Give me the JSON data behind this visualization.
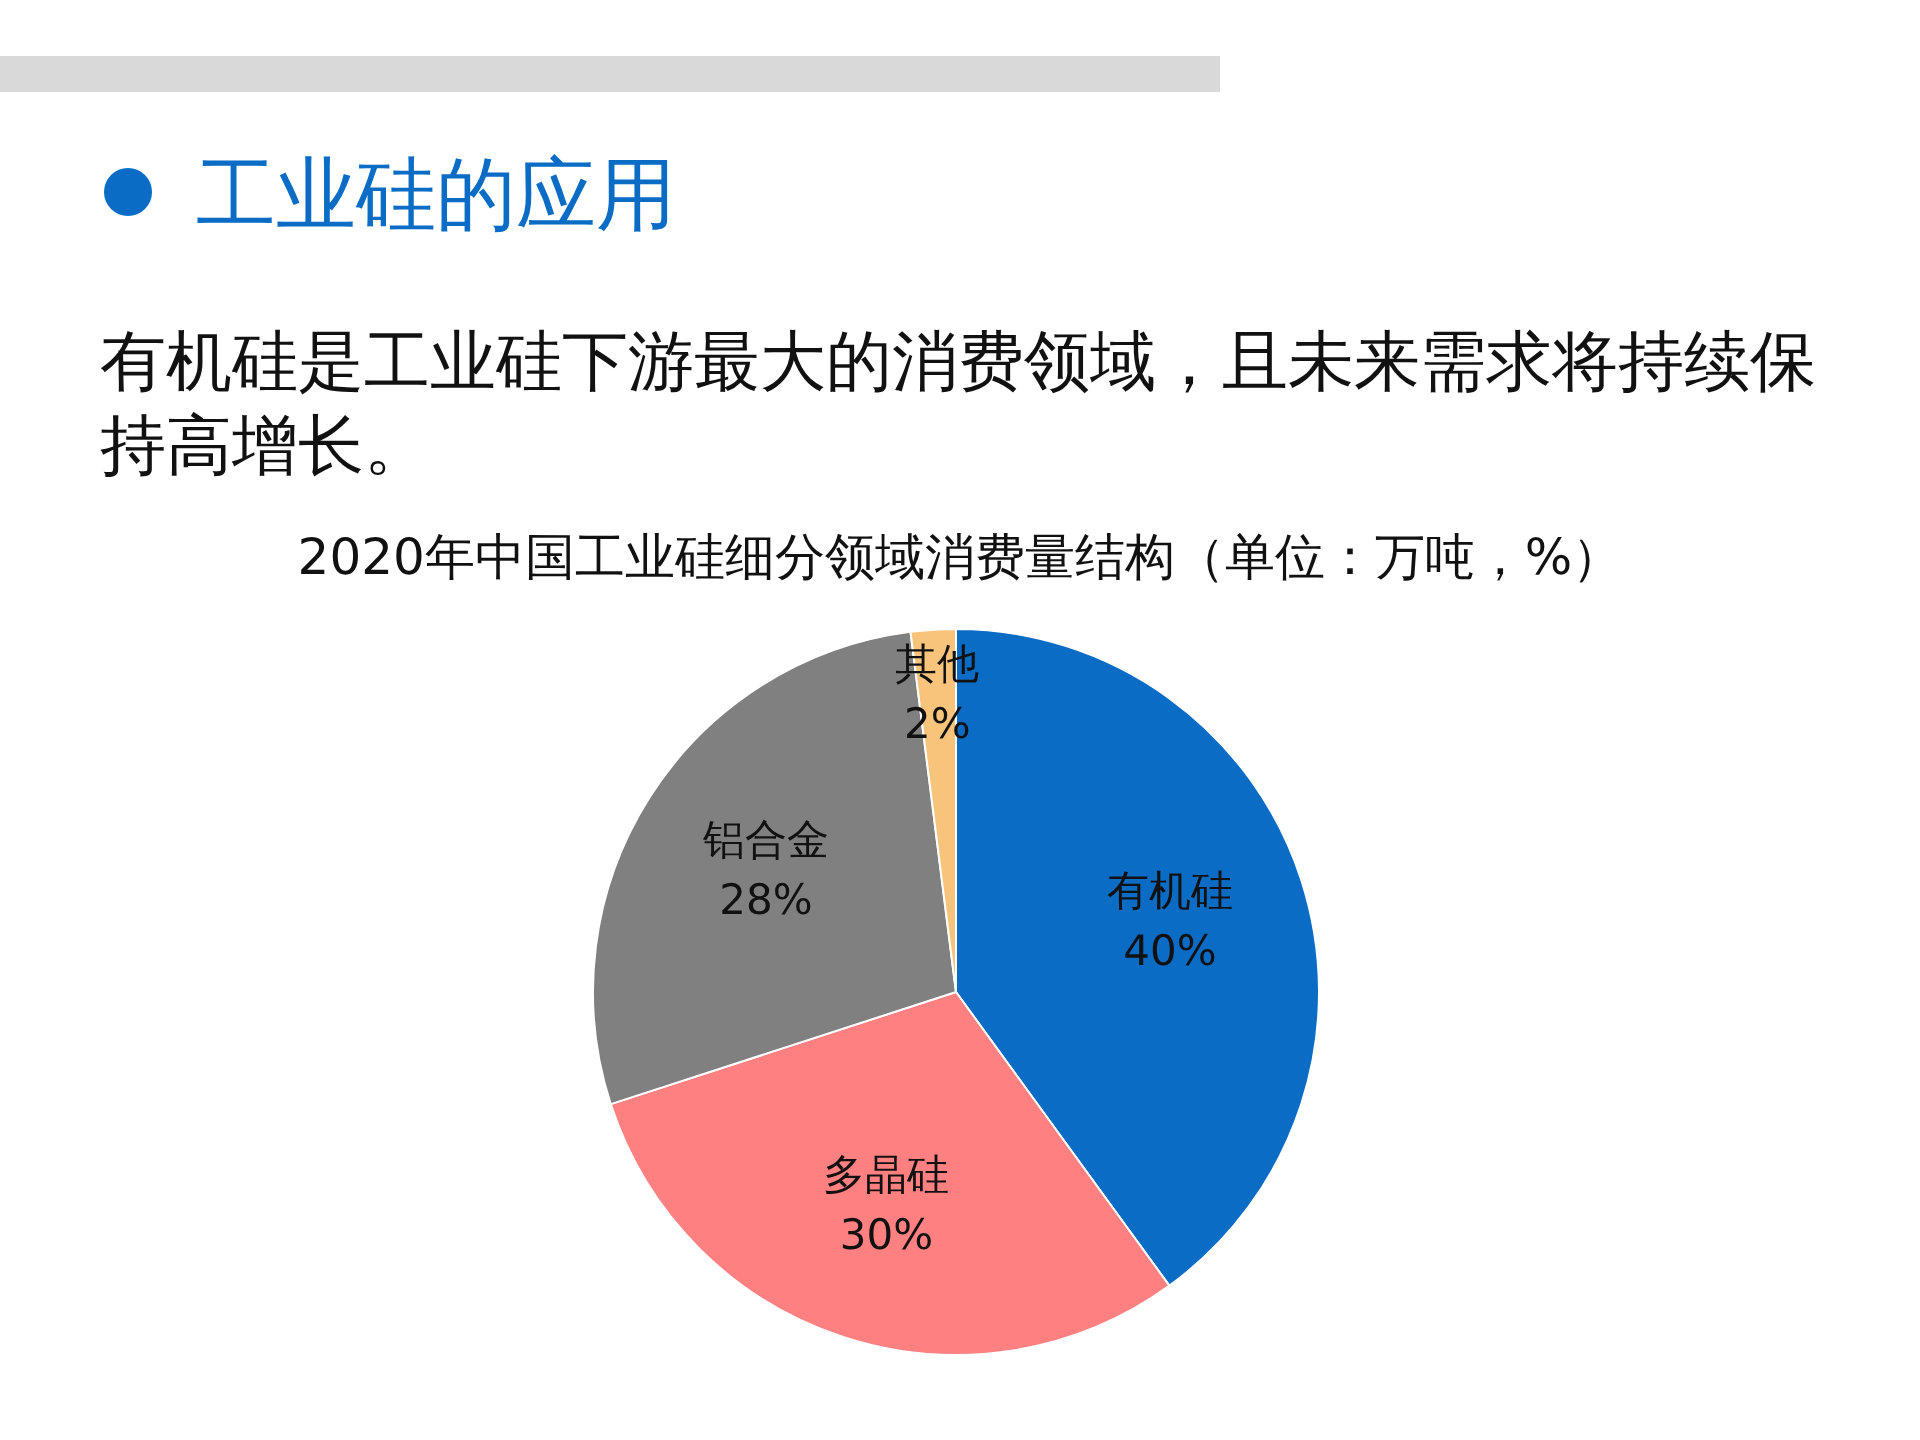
{
  "chart_data": {
    "type": "pie",
    "title": "2020年中国工业硅细分领域消费量结构（单位：万吨，%）",
    "annotations": [
      "工业硅的应用",
      "有机硅是工业硅下游最大的消费领域，且未来需求将持续保持高增长。"
    ],
    "categories": [
      "有机硅",
      "多晶硅",
      "铝合金",
      "其他"
    ],
    "values": [
      40,
      30,
      28,
      2
    ],
    "value_labels": [
      "40%",
      "30%",
      "28%",
      "2%"
    ],
    "colors": [
      "#0a6cc4",
      "#ff8080",
      "#808080",
      "#f8c47c"
    ],
    "legend": false
  }
}
